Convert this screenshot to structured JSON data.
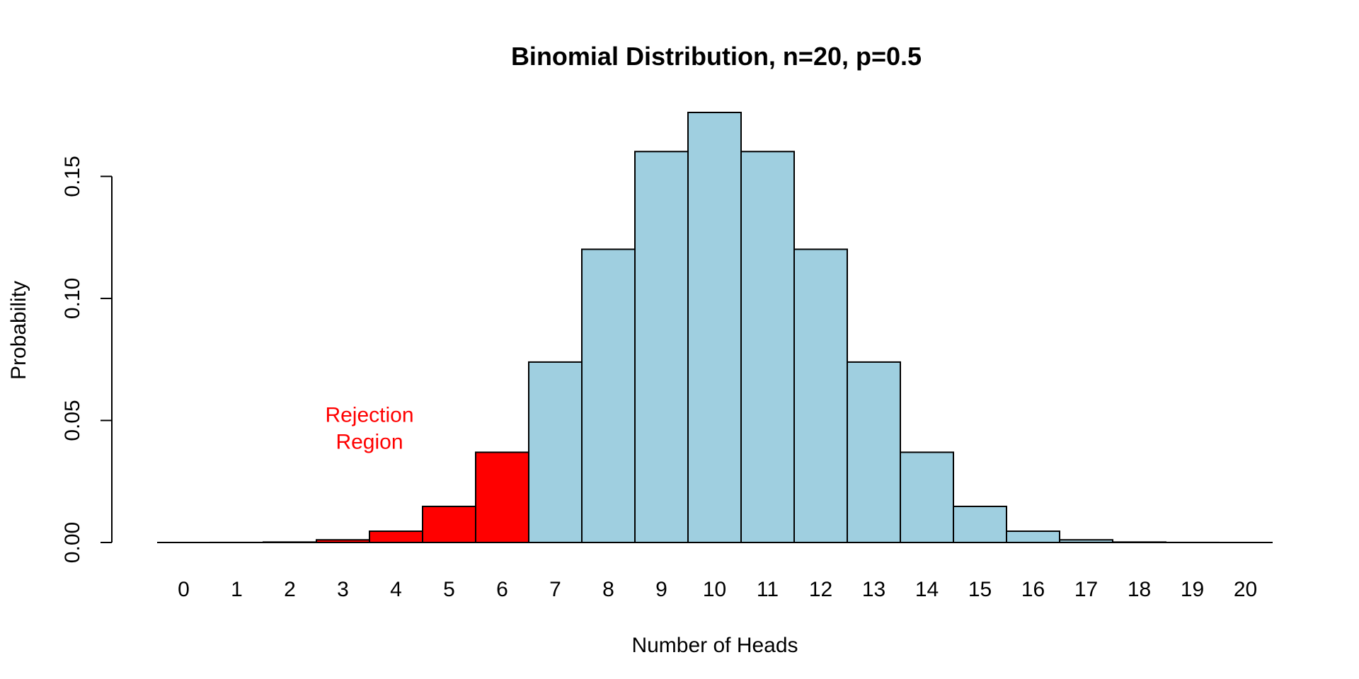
{
  "chart_data": {
    "type": "bar",
    "title": "Binomial Distribution, n=20, p=0.5",
    "xlabel": "Number of Heads",
    "ylabel": "Probability",
    "categories": [
      "0",
      "1",
      "2",
      "3",
      "4",
      "5",
      "6",
      "7",
      "8",
      "9",
      "10",
      "11",
      "12",
      "13",
      "14",
      "15",
      "16",
      "17",
      "18",
      "19",
      "20"
    ],
    "values": [
      1e-06,
      1.9e-05,
      0.000181,
      0.001087,
      0.004621,
      0.014786,
      0.036964,
      0.073929,
      0.120134,
      0.160179,
      0.176197,
      0.160179,
      0.120134,
      0.073929,
      0.036964,
      0.014786,
      0.004621,
      0.001087,
      0.000181,
      1.9e-05,
      1e-06
    ],
    "rejection_region": [
      "0",
      "1",
      "2",
      "3",
      "4",
      "5",
      "6"
    ],
    "colors": {
      "rejection": "#ff0000",
      "acceptance": "#9fcfe0",
      "annotation": "#ff0000"
    },
    "y_ticks": [
      "0.00",
      "0.05",
      "0.10",
      "0.15"
    ],
    "y_tick_values": [
      0,
      0.05,
      0.1,
      0.15
    ],
    "ylim": [
      0,
      0.176197
    ],
    "annotation": {
      "line1": "Rejection",
      "line2": "Region",
      "x": 3.5,
      "y": 0.046
    },
    "grid": false,
    "legend": "none"
  }
}
